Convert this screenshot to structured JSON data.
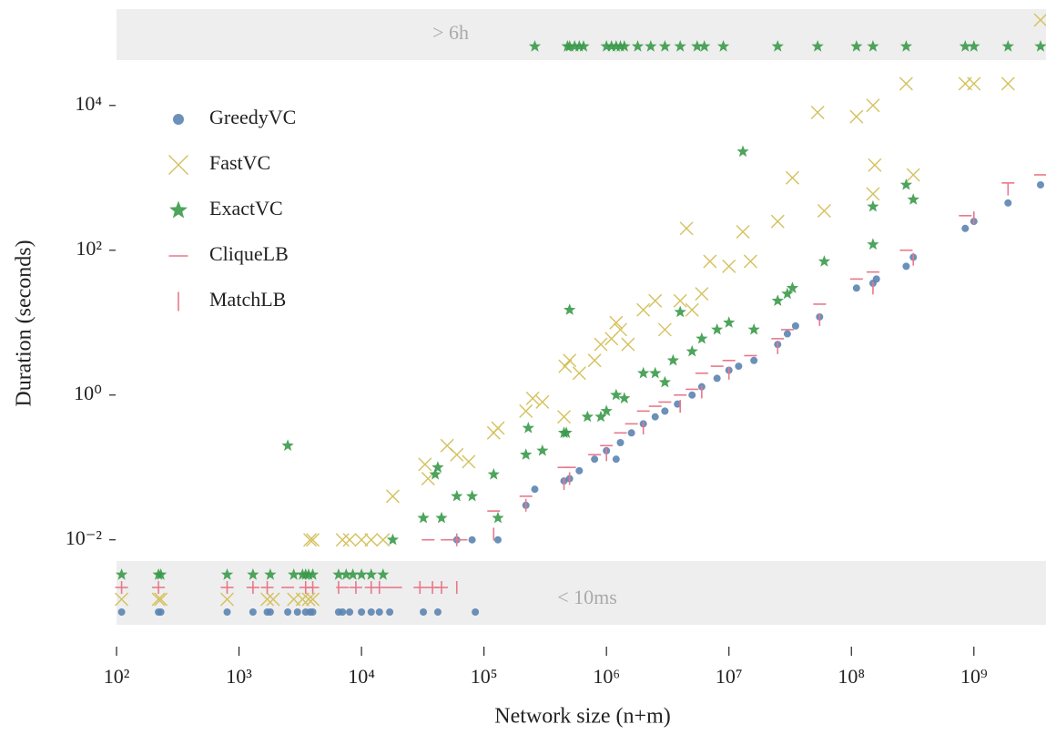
{
  "chart_data": {
    "type": "scatter",
    "x_label": "Network size (n+m)",
    "y_label": "Duration (seconds)",
    "log_x": true,
    "log_y": true,
    "xlim": [
      100,
      3500000000
    ],
    "ylim": [
      0.000447,
      214000
    ],
    "xticks": [
      {
        "value": 100,
        "label": "10²"
      },
      {
        "value": 1000,
        "label": "10³"
      },
      {
        "value": 10000,
        "label": "10⁴"
      },
      {
        "value": 100000,
        "label": "10⁵"
      },
      {
        "value": 1000000,
        "label": "10⁶"
      },
      {
        "value": 10000000,
        "label": "10⁷"
      },
      {
        "value": 100000000,
        "label": "10⁸"
      },
      {
        "value": 1000000000,
        "label": "10⁹"
      }
    ],
    "yticks": [
      {
        "value": 0.01,
        "label": "10⁻²"
      },
      {
        "value": 1,
        "label": "10⁰"
      },
      {
        "value": 100,
        "label": "10²"
      },
      {
        "value": 10000,
        "label": "10⁴"
      }
    ],
    "bands": {
      "top": "> 6h",
      "bottom": "< 10ms"
    },
    "legend": "upper left",
    "series": [
      {
        "name": "GreedyVC",
        "color": "#5b84b1",
        "marker": "circle",
        "x": [
          60000,
          80000,
          130000,
          220000,
          260000,
          450000,
          500000,
          600000,
          800000,
          1000000,
          1200000,
          1300000,
          1600000,
          2000000,
          2500000,
          3000000,
          3800000,
          5000000,
          6000000,
          8000000,
          10000000,
          12000000,
          16000000,
          25000000,
          30000000,
          35000000,
          55000000,
          110000000,
          150000000,
          160000000,
          280000000,
          320000000,
          850000000,
          1000000000,
          1900000000,
          3500000000
        ],
        "values": [
          0.01,
          0.01,
          0.01,
          0.03,
          0.05,
          0.065,
          0.07,
          0.09,
          0.13,
          0.17,
          0.13,
          0.22,
          0.3,
          0.4,
          0.5,
          0.6,
          0.75,
          1.0,
          1.3,
          1.7,
          2.2,
          2.5,
          3,
          5,
          7,
          9,
          12,
          30,
          35,
          40,
          60,
          80,
          200,
          250,
          450,
          800
        ],
        "timeouts": [],
        "under_10ms": [
          110,
          220,
          230,
          800,
          1300,
          1700,
          1800,
          2500,
          3000,
          3500,
          3800,
          4000,
          6500,
          7000,
          8000,
          10000,
          12000,
          14000,
          17000,
          32000,
          42000,
          85000
        ]
      },
      {
        "name": "FastVC",
        "color": "#d4c15c",
        "marker": "x",
        "x": [
          3800,
          4000,
          7000,
          8000,
          10000,
          12000,
          15000,
          18000,
          33000,
          35000,
          50000,
          60000,
          75000,
          120000,
          130000,
          220000,
          250000,
          300000,
          450000,
          460000,
          500000,
          600000,
          800000,
          900000,
          1100000,
          1200000,
          1300000,
          1500000,
          2000000,
          2500000,
          3000000,
          4000000,
          4500000,
          5000000,
          6000000,
          7000000,
          10000000,
          13000000,
          15000000,
          25000000,
          33000000,
          60000000,
          53000000,
          110000000,
          150000000,
          150000000,
          155000000,
          280000000,
          320000000,
          850000000,
          1000000000,
          1900000000
        ],
        "values": [
          0.01,
          0.01,
          0.01,
          0.01,
          0.01,
          0.01,
          0.01,
          0.04,
          0.11,
          0.07,
          0.2,
          0.15,
          0.12,
          0.3,
          0.35,
          0.6,
          0.9,
          0.8,
          0.5,
          2.5,
          3,
          2,
          3,
          5,
          6,
          10,
          8,
          5,
          15,
          20,
          8,
          20,
          200,
          15,
          25,
          70,
          60,
          180,
          70,
          250,
          1000,
          350,
          8000,
          7000,
          10000,
          600,
          1500,
          20000,
          1100,
          20000,
          20000,
          20000
        ],
        "timeouts": [
          3500000000
        ],
        "under_10ms": [
          110,
          220,
          230,
          800,
          1700,
          1900,
          2800,
          3300,
          3700,
          4000
        ]
      },
      {
        "name": "ExactVC",
        "color": "#3a9a4a",
        "marker": "star",
        "x": [
          2500,
          18000,
          32000,
          45000,
          40000,
          42000,
          60000,
          80000,
          120000,
          130000,
          220000,
          230000,
          300000,
          450000,
          470000,
          500000,
          700000,
          900000,
          1000000,
          1200000,
          1400000,
          2000000,
          2500000,
          3000000,
          3500000,
          4000000,
          5000000,
          6000000,
          8000000,
          10000000,
          13000000,
          16000000,
          25000000,
          30000000,
          33000000,
          60000000,
          150000000,
          150000000,
          280000000,
          320000000
        ],
        "values": [
          0.2,
          0.01,
          0.02,
          0.02,
          0.08,
          0.1,
          0.04,
          0.04,
          0.08,
          0.02,
          0.15,
          0.35,
          0.17,
          0.3,
          0.3,
          15,
          0.5,
          0.5,
          0.6,
          1,
          0.9,
          2,
          2,
          1.5,
          3,
          14,
          4,
          6,
          8,
          10,
          2300,
          8,
          20,
          25,
          30,
          70,
          400,
          120,
          800,
          500
        ],
        "timeouts": [
          260000,
          480000,
          500000,
          550000,
          600000,
          650000,
          1000000,
          1100000,
          1200000,
          1300000,
          1400000,
          1800000,
          2300000,
          3000000,
          4000000,
          5500000,
          6300000,
          9000000,
          25000000,
          53000000,
          110000000,
          150000000,
          280000000,
          850000000,
          1000000000,
          1900000000,
          3500000000
        ],
        "under_10ms": [
          110,
          220,
          230,
          800,
          1300,
          1800,
          2800,
          3300,
          3500,
          3700,
          4000,
          6500,
          7500,
          8500,
          10000,
          12000,
          15000
        ]
      },
      {
        "name": "CliqueLB",
        "color": "#e8788a",
        "marker": "hline",
        "x": [
          35000,
          50000,
          65000,
          120000,
          220000,
          450000,
          500000,
          800000,
          1000000,
          1300000,
          1600000,
          2000000,
          2500000,
          3000000,
          4000000,
          5000000,
          6000000,
          8000000,
          10000000,
          15000000,
          25000000,
          30000000,
          55000000,
          110000000,
          150000000,
          280000000,
          850000000,
          1900000000,
          3500000000
        ],
        "values": [
          0.01,
          0.01,
          0.01,
          0.025,
          0.04,
          0.1,
          0.1,
          0.15,
          0.2,
          0.3,
          0.4,
          0.6,
          0.7,
          0.8,
          1,
          1.2,
          2,
          2.5,
          3,
          3.5,
          6,
          8,
          18,
          40,
          50,
          100,
          300,
          850,
          1100
        ],
        "timeouts": [],
        "under_10ms": [
          110,
          220,
          800,
          1300,
          1700,
          2500,
          3500,
          4000,
          7000,
          9000,
          12000,
          15000,
          19000,
          30000,
          38000,
          45000
        ]
      },
      {
        "name": "MatchLB",
        "color": "#e8788a",
        "marker": "vline",
        "x": [
          60000,
          120000,
          220000,
          450000,
          500000,
          1000000,
          2000000,
          4000000,
          6000000,
          10000000,
          25000000,
          55000000,
          150000000,
          320000000,
          1000000000,
          1900000000
        ],
        "values": [
          0.01,
          0.012,
          0.03,
          0.06,
          0.07,
          0.15,
          0.35,
          0.7,
          1.1,
          2,
          4.5,
          11,
          30,
          75,
          280,
          700
        ],
        "timeouts": [],
        "under_10ms": [
          110,
          220,
          800,
          1300,
          1700,
          3500,
          4000,
          6500,
          9000,
          12000,
          14000,
          30000,
          38000,
          45000,
          60000
        ]
      }
    ]
  }
}
